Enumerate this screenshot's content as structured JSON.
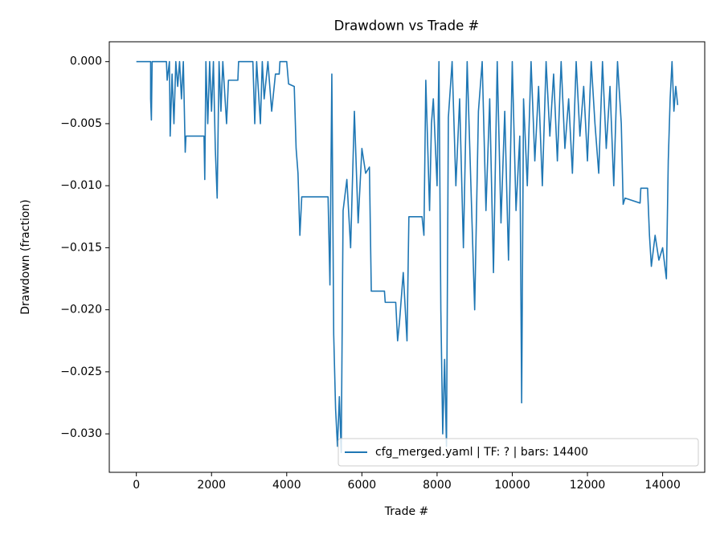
{
  "chart_data": {
    "type": "line",
    "title": "Drawdown vs Trade #",
    "xlabel": "Trade #",
    "ylabel": "Drawdown (fraction)",
    "xlim": [
      -720,
      15120
    ],
    "ylim": [
      -0.0331,
      0.0016
    ],
    "xticks": [
      0,
      2000,
      4000,
      6000,
      8000,
      10000,
      12000,
      14000
    ],
    "yticks": [
      {
        "value": 0,
        "label": "0.000"
      },
      {
        "value": -0.005,
        "label": "−0.005"
      },
      {
        "value": -0.01,
        "label": "−0.010"
      },
      {
        "value": -0.015,
        "label": "−0.015"
      },
      {
        "value": -0.02,
        "label": "−0.020"
      },
      {
        "value": -0.025,
        "label": "−0.025"
      },
      {
        "value": -0.03,
        "label": "−0.030"
      }
    ],
    "legend": "lower right",
    "series": [
      {
        "name": "cfg_merged.yaml | TF: ? | bars: 14400",
        "color": "#1f77b4",
        "x": [
          0,
          380,
          380,
          400,
          420,
          800,
          820,
          880,
          900,
          950,
          1000,
          1050,
          1100,
          1150,
          1200,
          1250,
          1300,
          1320,
          1800,
          1820,
          1850,
          1900,
          1950,
          2000,
          2050,
          2100,
          2150,
          2200,
          2250,
          2300,
          2400,
          2450,
          2700,
          2720,
          3100,
          3150,
          3200,
          3300,
          3350,
          3400,
          3500,
          3600,
          3700,
          3800,
          3820,
          4000,
          4050,
          4200,
          4250,
          4300,
          4350,
          4400,
          5100,
          5150,
          5200,
          5250,
          5300,
          5350,
          5400,
          5450,
          5500,
          5600,
          5700,
          5800,
          5900,
          6000,
          6100,
          6200,
          6250,
          6600,
          6620,
          6900,
          6950,
          7000,
          7100,
          7200,
          7250,
          7600,
          7650,
          7700,
          7800,
          7850,
          7900,
          8000,
          8050,
          8100,
          8150,
          8200,
          8250,
          8300,
          8400,
          8500,
          8600,
          8700,
          8800,
          8900,
          9000,
          9100,
          9200,
          9300,
          9400,
          9500,
          9600,
          9700,
          9800,
          9900,
          10000,
          10100,
          10200,
          10250,
          10300,
          10400,
          10500,
          10600,
          10700,
          10800,
          10900,
          11000,
          11100,
          11200,
          11300,
          11400,
          11500,
          11600,
          11700,
          11800,
          11900,
          12000,
          12100,
          12200,
          12300,
          12400,
          12500,
          12600,
          12700,
          12800,
          12900,
          12950,
          13000,
          13400,
          13420,
          13600,
          13650,
          13700,
          13800,
          13900,
          14000,
          14100,
          14150,
          14200,
          14250,
          14300,
          14350,
          14400
        ],
        "values": [
          0,
          0,
          -0.003,
          -0.0047,
          0,
          0,
          -0.0015,
          0,
          -0.006,
          -0.001,
          -0.005,
          0,
          -0.002,
          0,
          -0.003,
          0,
          -0.0073,
          -0.006,
          -0.006,
          -0.0095,
          0,
          -0.005,
          0,
          -0.004,
          0,
          -0.007,
          -0.011,
          0,
          -0.004,
          0,
          -0.005,
          -0.0015,
          -0.0015,
          0,
          0,
          -0.005,
          0,
          -0.005,
          0,
          -0.003,
          0,
          -0.004,
          -0.001,
          -0.001,
          0,
          0,
          -0.0018,
          -0.002,
          -0.007,
          -0.009,
          -0.014,
          -0.0109,
          -0.0109,
          -0.018,
          -0.001,
          -0.022,
          -0.028,
          -0.031,
          -0.027,
          -0.0315,
          -0.012,
          -0.0095,
          -0.015,
          -0.004,
          -0.013,
          -0.007,
          -0.009,
          -0.0085,
          -0.0185,
          -0.0185,
          -0.0194,
          -0.0194,
          -0.0225,
          -0.021,
          -0.017,
          -0.0225,
          -0.0125,
          -0.0125,
          -0.014,
          -0.0015,
          -0.012,
          -0.005,
          -0.003,
          -0.01,
          0,
          -0.02,
          -0.03,
          -0.024,
          -0.031,
          -0.0045,
          0,
          -0.01,
          -0.003,
          -0.015,
          0,
          -0.01,
          -0.02,
          -0.004,
          0,
          -0.012,
          -0.003,
          -0.017,
          0,
          -0.013,
          -0.004,
          -0.016,
          0,
          -0.012,
          -0.006,
          -0.0275,
          -0.003,
          -0.01,
          0,
          -0.008,
          -0.002,
          -0.01,
          0,
          -0.006,
          -0.001,
          -0.008,
          0,
          -0.007,
          -0.003,
          -0.009,
          0,
          -0.006,
          -0.002,
          -0.008,
          0,
          -0.005,
          -0.009,
          0,
          -0.007,
          -0.002,
          -0.01,
          0,
          -0.005,
          -0.0115,
          -0.011,
          -0.0114,
          -0.0102,
          -0.0102,
          -0.014,
          -0.0165,
          -0.014,
          -0.016,
          -0.015,
          -0.0175,
          -0.008,
          -0.003,
          0,
          -0.004,
          -0.002,
          -0.0035
        ]
      }
    ]
  }
}
